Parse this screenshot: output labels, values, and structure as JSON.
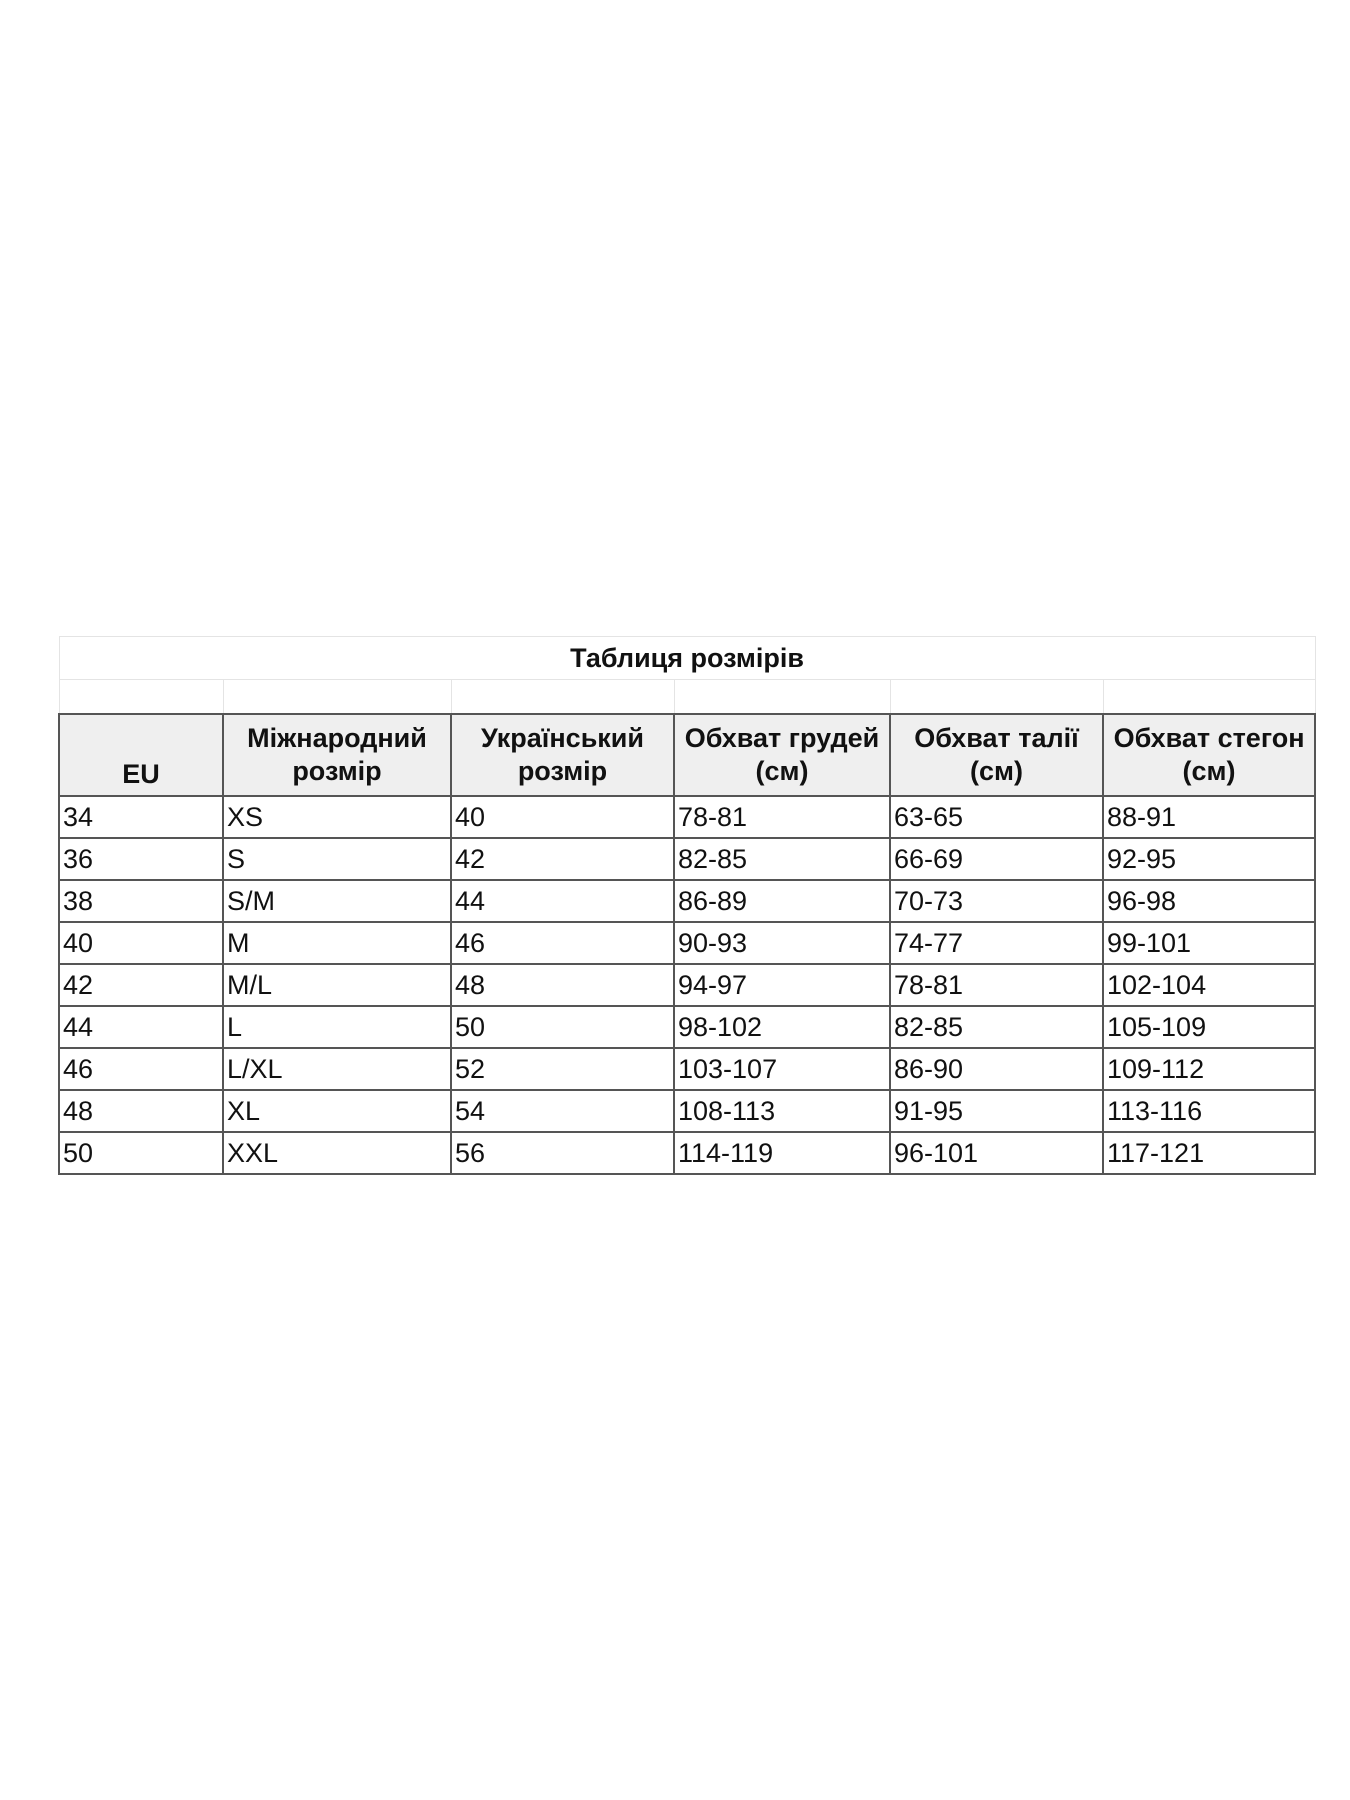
{
  "title": "Таблиця розмірів",
  "headers": [
    "EU",
    "Міжнародний розмір",
    "Український розмір",
    "Обхват грудей (см)",
    "Обхват талії (см)",
    "Обхват стегон (см)"
  ],
  "rows": [
    [
      "34",
      "XS",
      "40",
      "78-81",
      "63-65",
      "88-91"
    ],
    [
      "36",
      "S",
      "42",
      "82-85",
      "66-69",
      "92-95"
    ],
    [
      "38",
      "S/M",
      "44",
      "86-89",
      "70-73",
      "96-98"
    ],
    [
      "40",
      "M",
      "46",
      "90-93",
      "74-77",
      "99-101"
    ],
    [
      "42",
      "M/L",
      "48",
      "94-97",
      "78-81",
      "102-104"
    ],
    [
      "44",
      "L",
      "50",
      "98-102",
      "82-85",
      "105-109"
    ],
    [
      "46",
      "L/XL",
      "52",
      "103-107",
      "86-90",
      "109-112"
    ],
    [
      "48",
      "XL",
      "54",
      "108-113",
      "91-95",
      "113-116"
    ],
    [
      "50",
      "XXL",
      "56",
      "114-119",
      "96-101",
      "117-121"
    ]
  ]
}
